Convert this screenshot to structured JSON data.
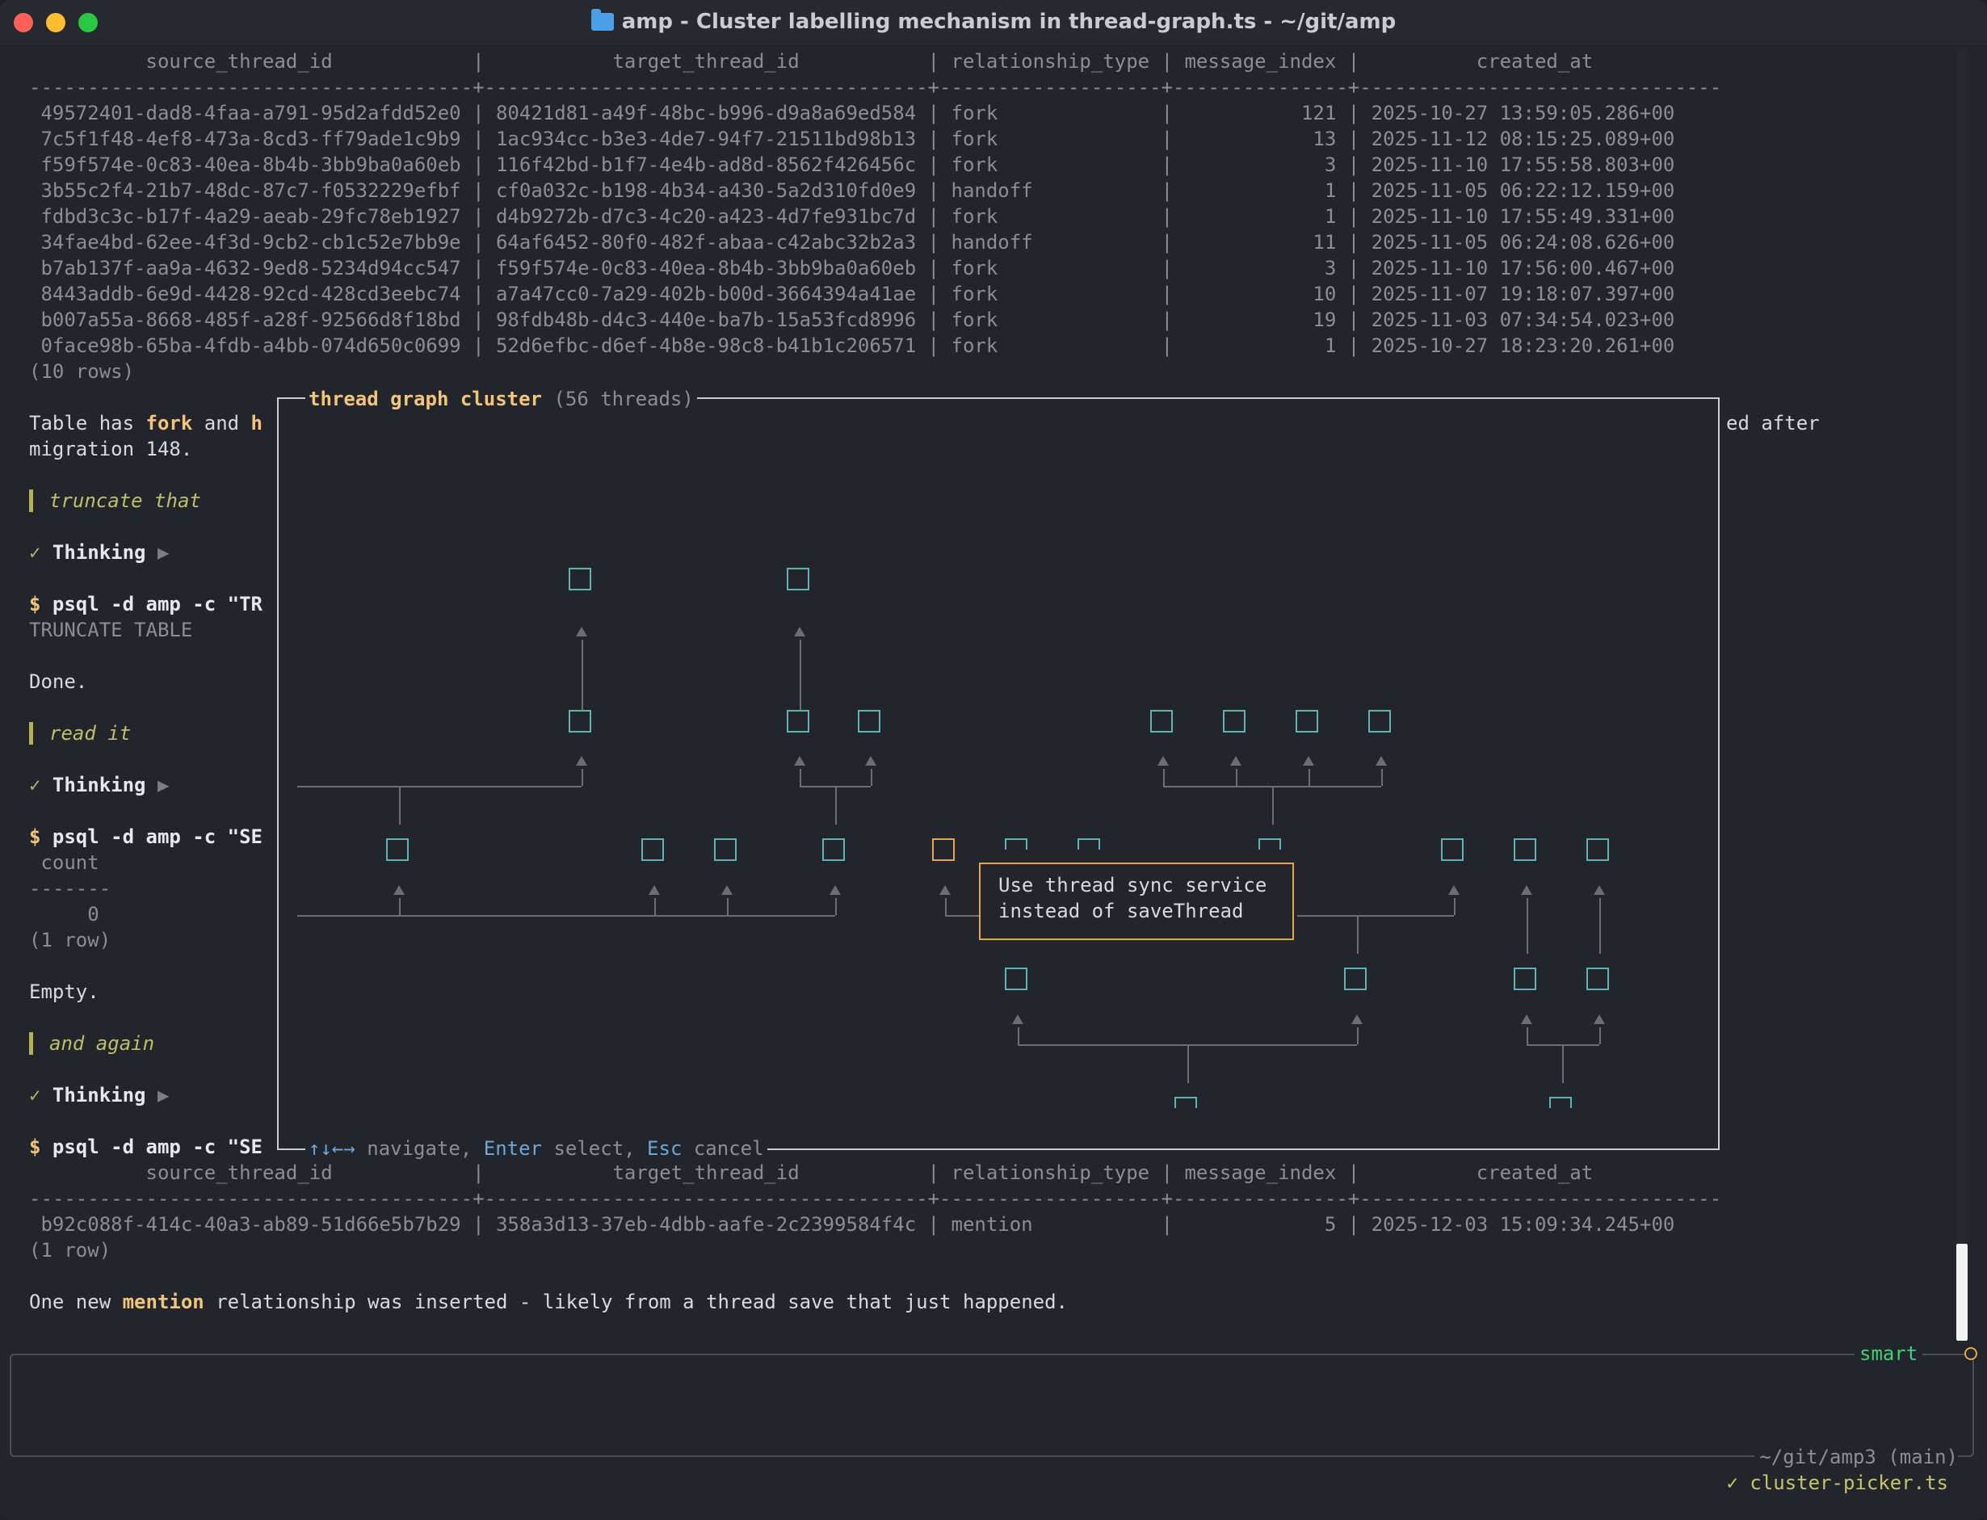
{
  "window": {
    "title": "amp - Cluster labelling mechanism in thread-graph.ts - ~/git/amp"
  },
  "table1": {
    "header": "          source_thread_id            |           target_thread_id           | relationship_type | message_index |          created_at",
    "sep": "--------------------------------------+--------------------------------------+-------------------+---------------+-------------------------------",
    "rows": [
      " 49572401-dad8-4faa-a791-95d2afdd52e0 | 80421d81-a49f-48bc-b996-d9a8a69ed584 | fork              |           121 | 2025-10-27 13:59:05.286+00",
      " 7c5f1f48-4ef8-473a-8cd3-ff79ade1c9b9 | 1ac934cc-b3e3-4de7-94f7-21511bd98b13 | fork              |            13 | 2025-11-12 08:15:25.089+00",
      " f59f574e-0c83-40ea-8b4b-3bb9ba0a60eb | 116f42bd-b1f7-4e4b-ad8d-8562f426456c | fork              |             3 | 2025-11-10 17:55:58.803+00",
      " 3b55c2f4-21b7-48dc-87c7-f0532229efbf | cf0a032c-b198-4b34-a430-5a2d310fd0e9 | handoff           |             1 | 2025-11-05 06:22:12.159+00",
      " fdbd3c3c-b17f-4a29-aeab-29fc78eb1927 | d4b9272b-d7c3-4c20-a423-4d7fe931bc7d | fork              |             1 | 2025-11-10 17:55:49.331+00",
      " 34fae4bd-62ee-4f3d-9cb2-cb1c52e7bb9e | 64af6452-80f0-482f-abaa-c42abc32b2a3 | handoff           |            11 | 2025-11-05 06:24:08.626+00",
      " b7ab137f-aa9a-4632-9ed8-5234d94cc547 | f59f574e-0c83-40ea-8b4b-3bb9ba0a60eb | fork              |             3 | 2025-11-10 17:56:00.467+00",
      " 8443addb-6e9d-4428-92cd-428cd3eebc74 | a7a47cc0-7a29-402b-b00d-3664394a41ae | fork              |            10 | 2025-11-07 19:18:07.397+00",
      " b007a55a-8668-485f-a28f-92566d8f18bd | 98fdb48b-d4c3-440e-ba7b-15a53fcd8996 | fork              |            19 | 2025-11-03 07:34:54.023+00",
      " 0face98b-65ba-4fdb-a4bb-074d650c0699 | 52d6efbc-d6ef-4b8e-98c8-b41b1c206571 | fork              |             1 | 2025-10-27 18:23:20.261+00"
    ],
    "count": "(10 rows)"
  },
  "chat": {
    "line1_pre": "Table has ",
    "line1_fork": "fork",
    "line1_and": " and ",
    "line1_h": "h",
    "line1_tail": "ed after",
    "line2": "migration 148.",
    "user1": "truncate that",
    "thinking": "Thinking",
    "cmd1": "psql -d amp -c \"TR",
    "out1": "TRUNCATE TABLE",
    "done": "Done.",
    "user2": "read it",
    "cmd2": "psql -d amp -c \"SE",
    "count_hdr": " count",
    "count_sep": "-------",
    "count_val": "     0",
    "count_rows": "(1 row)",
    "empty": "Empty.",
    "user3": "and again",
    "cmd3": "psql -d amp -c \"SE",
    "prompt": "$",
    "check": "✓",
    "expand": "▶"
  },
  "table2": {
    "header": "          source_thread_id            |           target_thread_id           | relationship_type | message_index |          created_at",
    "sep": "--------------------------------------+--------------------------------------+-------------------+---------------+-------------------------------",
    "rows": [
      " b92c088f-414c-40a3-ab89-51d66e5b7b29 | 358a3d13-37eb-4dbb-aafe-2c2399584f4c | mention           |             5 | 2025-12-03 15:09:34.245+00"
    ],
    "count": "(1 row)"
  },
  "summary": {
    "pre": "One new ",
    "kw": "mention",
    "post": " relationship was inserted - likely from a thread save that just happened."
  },
  "modal": {
    "title": "thread graph cluster",
    "subtitle": "(56 threads)",
    "footer_keys": "↑↓←→",
    "footer_nav": " navigate, ",
    "footer_enter": "Enter",
    "footer_select": " select, ",
    "footer_esc": "Esc",
    "footer_cancel": " cancel",
    "tooltip": "Use thread sync service\ninstead of saveThread"
  },
  "input": {
    "mode": "smart",
    "cwd": "~/git/amp3 (main)",
    "file": "✓ cluster-picker.ts"
  },
  "colors": {
    "node": "#5fb3b3",
    "selected_node": "#e3a64a",
    "accent_yellow": "#f3c57a",
    "mode_green": "#3fd07a"
  }
}
